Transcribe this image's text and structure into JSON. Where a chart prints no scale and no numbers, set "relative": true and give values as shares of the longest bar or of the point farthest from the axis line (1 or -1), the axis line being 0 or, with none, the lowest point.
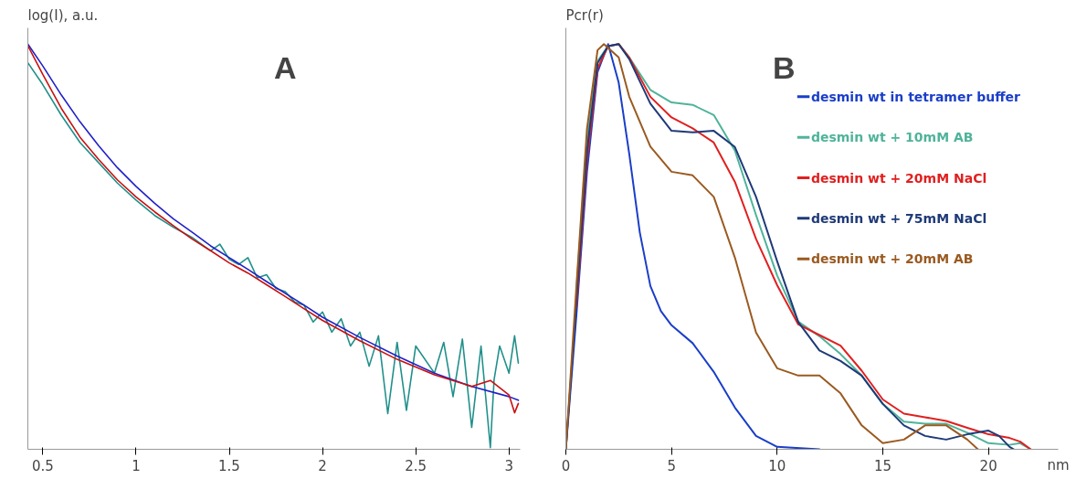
{
  "chart_data": [
    {
      "type": "line",
      "ylabel": "log(I), a.u.",
      "annotations": [
        "A"
      ],
      "relative": true,
      "tick_labels": "x",
      "xlim": [
        0.42,
        3.06
      ],
      "xticks": [
        0.5,
        1,
        1.5,
        2,
        2.5,
        3
      ],
      "legend": false,
      "grid": false,
      "series": [
        {
          "color": "#20908a",
          "x": [
            0.42,
            0.5,
            0.6,
            0.7,
            0.8,
            0.9,
            1.0,
            1.1,
            1.2,
            1.3,
            1.4,
            1.45,
            1.5,
            1.55,
            1.6,
            1.65,
            1.7,
            1.75,
            1.8,
            1.85,
            1.9,
            1.95,
            2.0,
            2.05,
            2.1,
            2.15,
            2.2,
            2.25,
            2.3,
            2.35,
            2.4,
            2.45,
            2.5,
            2.6,
            2.65,
            2.7,
            2.75,
            2.8,
            2.85,
            2.9,
            2.92,
            2.95,
            3.0,
            3.03,
            3.05
          ],
          "values": [
            0.954,
            0.9,
            0.824,
            0.757,
            0.707,
            0.657,
            0.615,
            0.577,
            0.548,
            0.523,
            0.49,
            0.506,
            0.469,
            0.456,
            0.473,
            0.423,
            0.431,
            0.397,
            0.389,
            0.364,
            0.356,
            0.314,
            0.339,
            0.289,
            0.322,
            0.255,
            0.289,
            0.205,
            0.28,
            0.088,
            0.264,
            0.096,
            0.255,
            0.188,
            0.264,
            0.13,
            0.272,
            0.054,
            0.255,
            0.004,
            0.172,
            0.255,
            0.188,
            0.28,
            0.213
          ]
        },
        {
          "color": "#2020c8",
          "x": [
            0.42,
            0.5,
            0.6,
            0.7,
            0.8,
            0.9,
            1.0,
            1.1,
            1.2,
            1.3,
            1.4,
            1.5,
            1.6,
            1.7,
            1.8,
            1.9,
            2.0,
            2.2,
            2.4,
            2.6,
            2.8,
            3.0,
            3.05
          ],
          "values": [
            1.0,
            0.946,
            0.874,
            0.808,
            0.749,
            0.695,
            0.649,
            0.607,
            0.569,
            0.536,
            0.502,
            0.473,
            0.444,
            0.414,
            0.385,
            0.356,
            0.326,
            0.276,
            0.23,
            0.188,
            0.155,
            0.13,
            0.121
          ]
        },
        {
          "color": "#c81010",
          "x": [
            0.42,
            0.5,
            0.6,
            0.7,
            0.8,
            0.9,
            1.0,
            1.1,
            1.2,
            1.3,
            1.4,
            1.5,
            1.6,
            1.7,
            1.8,
            1.9,
            2.0,
            2.2,
            2.4,
            2.6,
            2.8,
            2.9,
            3.0,
            3.03,
            3.05
          ],
          "values": [
            0.996,
            0.925,
            0.841,
            0.77,
            0.715,
            0.665,
            0.623,
            0.586,
            0.552,
            0.519,
            0.49,
            0.46,
            0.435,
            0.406,
            0.377,
            0.347,
            0.318,
            0.268,
            0.222,
            0.184,
            0.155,
            0.17,
            0.134,
            0.09,
            0.113
          ]
        }
      ]
    },
    {
      "type": "line",
      "ylabel": "Pcr(r)",
      "xlabel": "nm",
      "annotations": [
        "B"
      ],
      "relative": true,
      "tick_labels": "x",
      "xlim": [
        0,
        23.3
      ],
      "xticks": [
        0,
        5,
        10,
        15,
        20
      ],
      "legend": "top right",
      "grid": false,
      "series": [
        {
          "name": "desmin wt in tetramer buffer",
          "color": "#1a3ec8",
          "x": [
            0,
            0.5,
            1,
            1.5,
            2,
            2.5,
            3,
            3.5,
            4,
            4.5,
            5,
            6,
            7,
            8,
            9,
            10,
            12
          ],
          "values": [
            0,
            0.332,
            0.685,
            0.931,
            1.0,
            0.905,
            0.729,
            0.535,
            0.403,
            0.341,
            0.306,
            0.262,
            0.191,
            0.103,
            0.033,
            0.006,
            0
          ]
        },
        {
          "name": "desmin wt + 10mM AB",
          "color": "#4fb39a",
          "x": [
            0.5,
            1,
            1.5,
            2,
            2.5,
            3,
            4,
            5,
            6,
            7,
            8,
            9,
            10,
            11,
            12,
            13,
            14,
            15,
            16,
            17,
            18,
            19,
            20,
            21,
            21.5,
            22
          ],
          "values": [
            0.392,
            0.765,
            0.958,
            0.995,
            1.0,
            0.967,
            0.887,
            0.856,
            0.85,
            0.825,
            0.737,
            0.578,
            0.429,
            0.315,
            0.279,
            0.235,
            0.182,
            0.112,
            0.068,
            0.063,
            0.063,
            0.041,
            0.015,
            0.011,
            0.015,
            0
          ]
        },
        {
          "name": "desmin wt + 20mM NaCl",
          "color": "#e02020",
          "x": [
            0.5,
            1,
            1.5,
            2,
            2.5,
            3,
            4,
            5,
            6,
            7,
            8,
            9,
            10,
            11,
            12,
            13,
            14,
            15,
            16,
            17,
            18,
            19,
            20,
            21,
            21.5,
            22
          ],
          "values": [
            0.35,
            0.715,
            0.94,
            0.995,
            1.0,
            0.967,
            0.87,
            0.819,
            0.792,
            0.757,
            0.66,
            0.519,
            0.405,
            0.308,
            0.282,
            0.256,
            0.194,
            0.123,
            0.088,
            0.079,
            0.07,
            0.053,
            0.037,
            0.028,
            0.019,
            0
          ]
        },
        {
          "name": "desmin wt + 75mM NaCl",
          "color": "#1f3a78",
          "x": [
            0,
            0.5,
            1,
            1.5,
            2,
            2.5,
            3,
            4,
            5,
            6,
            7,
            8,
            9,
            10,
            11,
            12,
            13,
            14,
            15,
            16,
            17,
            18,
            19,
            20,
            20.5,
            21,
            21.2
          ],
          "values": [
            0,
            0.367,
            0.737,
            0.953,
            0.995,
            1.0,
            0.963,
            0.853,
            0.786,
            0.782,
            0.786,
            0.746,
            0.623,
            0.464,
            0.314,
            0.244,
            0.218,
            0.182,
            0.112,
            0.059,
            0.033,
            0.024,
            0.037,
            0.046,
            0.033,
            0.006,
            0
          ]
        },
        {
          "name": "desmin wt + 20mM AB",
          "color": "#9a5a20",
          "x": [
            0,
            0.5,
            1,
            1.5,
            1.8,
            2.5,
            3,
            4,
            5,
            6,
            7,
            8,
            9,
            10,
            11,
            12,
            13,
            14,
            15,
            16,
            17,
            18,
            19,
            19.5
          ],
          "values": [
            0,
            0.403,
            0.791,
            0.985,
            1.0,
            0.967,
            0.87,
            0.747,
            0.685,
            0.676,
            0.623,
            0.473,
            0.288,
            0.2,
            0.182,
            0.182,
            0.138,
            0.059,
            0.015,
            0.024,
            0.059,
            0.059,
            0.024,
            0
          ]
        }
      ]
    }
  ]
}
